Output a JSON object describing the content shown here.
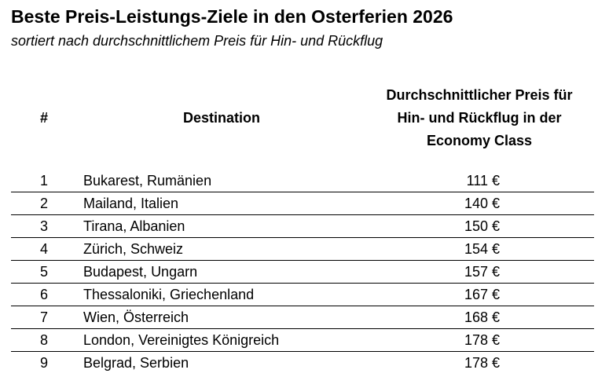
{
  "chart_data": {
    "type": "table",
    "title": "Beste Preis-Leistungs-Ziele in den Osterferien 2026",
    "subtitle": "sortiert nach durchschnittlichem Preis für Hin- und Rückflug",
    "columns": [
      "#",
      "Destination",
      "Durchschnittlicher Preis für\nHin- und Rückflug in der\nEconomy Class"
    ],
    "rows": [
      {
        "rank": "1",
        "destination": "Bukarest, Rumänien",
        "price": "111 €"
      },
      {
        "rank": "2",
        "destination": "Mailand, Italien",
        "price": "140 €"
      },
      {
        "rank": "3",
        "destination": "Tirana, Albanien",
        "price": "150 €"
      },
      {
        "rank": "4",
        "destination": "Zürich, Schweiz",
        "price": "154 €"
      },
      {
        "rank": "5",
        "destination": "Budapest, Ungarn",
        "price": "157 €"
      },
      {
        "rank": "6",
        "destination": "Thessaloniki, Griechenland",
        "price": "167 €"
      },
      {
        "rank": "7",
        "destination": "Wien, Österreich",
        "price": "168 €"
      },
      {
        "rank": "8",
        "destination": "London, Vereinigtes Königreich",
        "price": "178 €"
      },
      {
        "rank": "9",
        "destination": "Belgrad, Serbien",
        "price": "178 €"
      }
    ]
  }
}
